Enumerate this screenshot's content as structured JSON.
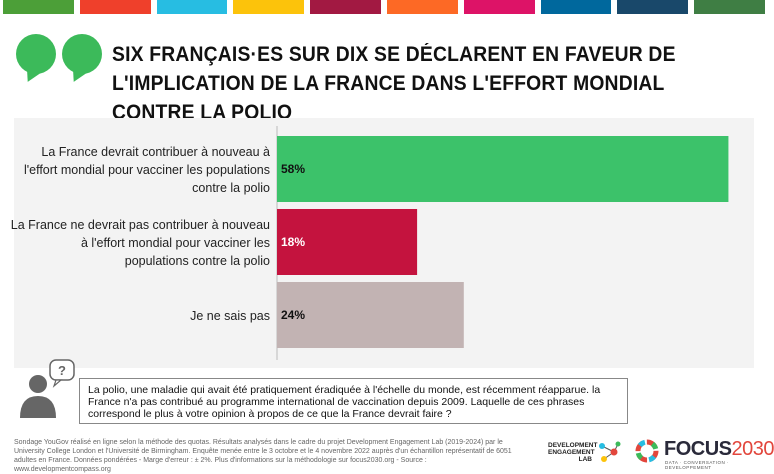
{
  "top_stripe_colors": [
    "#4c9f38",
    "#ef402b",
    "#27bde2",
    "#fcc30b",
    "#a21942",
    "#fd6925",
    "#dd1367",
    "#00689d",
    "#19486a",
    "#3f7e44"
  ],
  "title": "SIX FRANÇAIS·ES SUR DIX SE DÉCLARENT EN FAVEUR DE L'IMPLICATION DE LA FRANCE DANS L'EFFORT MONDIAL CONTRE LA POLIO",
  "chart_data": {
    "type": "bar",
    "orientation": "horizontal",
    "categories": [
      "La France devrait contribuer à nouveau à l'effort mondial pour vacciner les populations contre la polio",
      "La France ne devrait pas contribuer à nouveau à l'effort mondial pour vacciner les populations contre la polio",
      "Je ne sais pas"
    ],
    "category_lines": [
      [
        "La France devrait contribuer à nouveau à",
        "l'effort mondial pour vacciner les populations",
        "contre la polio"
      ],
      [
        "La France ne devrait pas contribuer à nouveau",
        "à l'effort mondial pour vacciner les",
        "populations contre la polio"
      ],
      [
        "Je ne sais pas"
      ]
    ],
    "values": [
      58,
      18,
      24
    ],
    "value_labels": [
      "58%",
      "18%",
      "24%"
    ],
    "colors": [
      "#3cc26a",
      "#c4133e",
      "#c2b3b3"
    ],
    "label_colors": [
      "#111111",
      "#ffffff",
      "#111111"
    ],
    "xlim": [
      0,
      60
    ],
    "grid": false
  },
  "question": "La polio, une maladie qui avait été pratiquement éradiquée à l'échelle du monde, est récemment réapparue. la France n'a pas contribué au programme international de vaccination depuis 2009. Laquelle de ces phrases correspond le plus à votre opinion à propos de ce que la France devrait faire ?",
  "footer": "Sondage YouGov réalisé en ligne selon la méthode des quotas. Résultats analysés dans le cadre du projet Development Engagement Lab (2019-2024) par le University College London et l'Université de Birmingham. Enquête menée entre le 3 octobre et le 4 novembre 2022 auprès d'un échantillon représentatif de 6051 adultes en France. Données pondérées - Marge d'erreur : ± 2%. Plus d'informations sur la méthodologie sur focus2030.org - Source : www.developmentcompass.org",
  "logos": {
    "del": "DEVELOPMENT ENGAGEMENT LAB",
    "focus_word": "FOCUS",
    "focus_num": "2030",
    "focus_sub": "DATA · CONVERSATION · DEVELOPPEMENT"
  }
}
